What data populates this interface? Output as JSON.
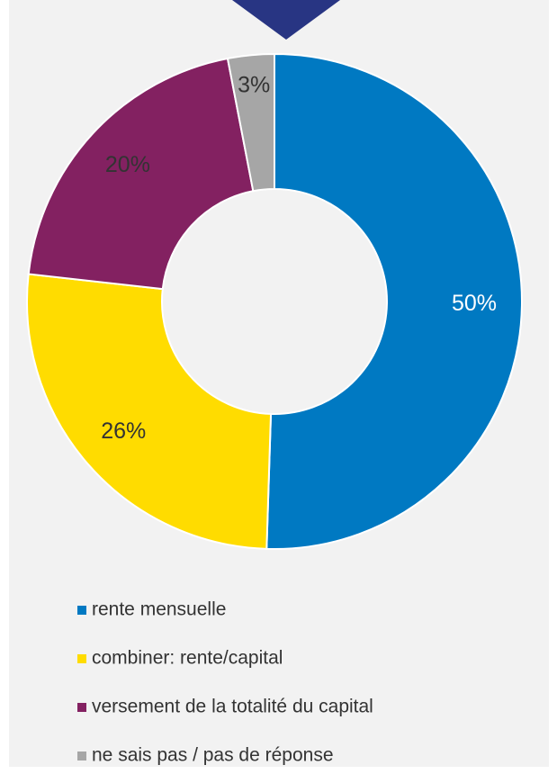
{
  "chart_data": {
    "type": "donut",
    "categories": [
      "rente mensuelle",
      "combiner: rente/capital",
      "versement de la totalité du capital",
      "ne sais pas / pas de réponse"
    ],
    "values": [
      50,
      26,
      20,
      3
    ],
    "value_labels": [
      "50%",
      "26%",
      "20%",
      "3%"
    ],
    "colors": [
      "#0079c2",
      "#ffdc00",
      "#832161",
      "#a6a6a6"
    ],
    "legend": "bottom"
  }
}
